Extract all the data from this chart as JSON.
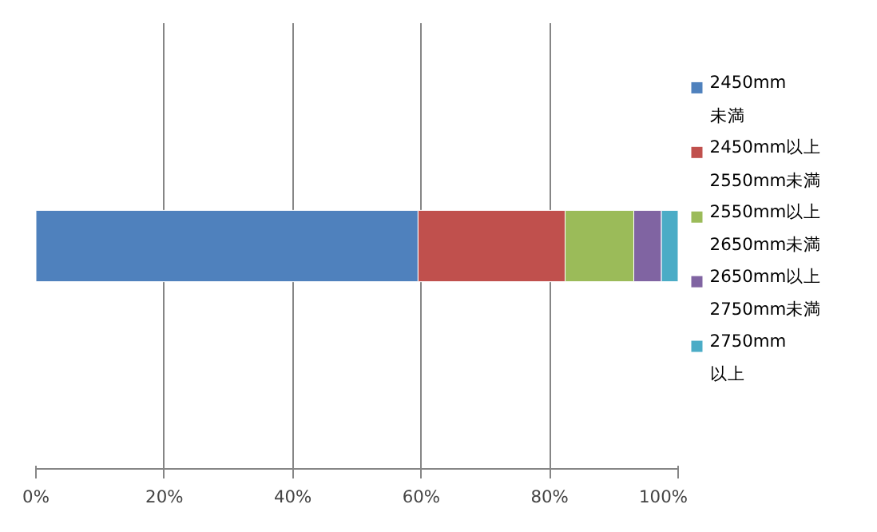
{
  "chart_data": {
    "type": "bar",
    "orientation": "horizontal",
    "stacked": true,
    "categories": [
      null
    ],
    "series": [
      {
        "name": "2450mm\n未満",
        "color": "#4f81bd",
        "values": [
          59.5
        ]
      },
      {
        "name": "2450mm以上\n2550mm未満",
        "color": "#c0504d",
        "values": [
          22.9
        ]
      },
      {
        "name": "2550mm以上\n2650mm未満",
        "color": "#9bbb59",
        "values": [
          10.7
        ]
      },
      {
        "name": "2650mm以上\n2750mm未満",
        "color": "#8064a2",
        "values": [
          4.3
        ]
      },
      {
        "name": "2750mm\n以上",
        "color": "#4bacc6",
        "values": [
          2.6
        ]
      }
    ],
    "xlim": [
      0,
      100
    ],
    "xticks": [
      {
        "value": 0,
        "label": "0%"
      },
      {
        "value": 20,
        "label": "20%"
      },
      {
        "value": 40,
        "label": "40%"
      },
      {
        "value": 60,
        "label": "60%"
      },
      {
        "value": 80,
        "label": "80%"
      },
      {
        "value": 100,
        "label": "100%"
      }
    ],
    "grid": "x",
    "legend": "right",
    "tick_labels": "x"
  }
}
